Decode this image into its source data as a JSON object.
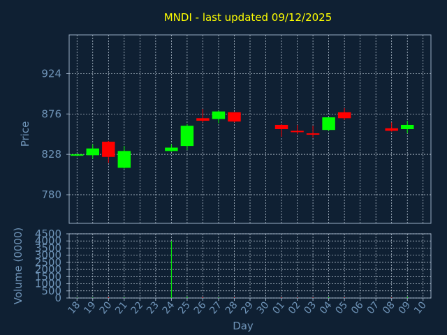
{
  "chart_data": {
    "type": "candlestick",
    "title": "MNDI - last updated 09/12/2025",
    "xlabel": "Day",
    "price": {
      "ylabel": "Price",
      "yticks": [
        780,
        828,
        876,
        924
      ],
      "ylim": [
        746,
        970
      ],
      "grid": true
    },
    "volume": {
      "ylabel": "Volume (0000)",
      "yticks": [
        0,
        500,
        1000,
        1500,
        2000,
        2500,
        3000,
        3500,
        4000,
        4500
      ],
      "ylim": [
        0,
        4500
      ],
      "grid": true
    },
    "colors": {
      "up": "#00ff00",
      "down": "#ff0000",
      "background": "#0f2033",
      "title": "#ffff00",
      "axis_text": "#6f94b8"
    },
    "days": [
      "18",
      "19",
      "20",
      "21",
      "22",
      "23",
      "24",
      "25",
      "26",
      "27",
      "28",
      "29",
      "30",
      "01",
      "02",
      "03",
      "04",
      "05",
      "06",
      "07",
      "08",
      "09",
      "10"
    ],
    "candles": [
      {
        "day": "18",
        "open": 828,
        "high": 829,
        "low": 827,
        "close": 828,
        "volume": 0
      },
      {
        "day": "19",
        "open": 827,
        "high": 840,
        "low": 823,
        "close": 835,
        "volume": 30
      },
      {
        "day": "20",
        "open": 843,
        "high": 844,
        "low": 818,
        "close": 825,
        "volume": 60
      },
      {
        "day": "21",
        "open": 812,
        "high": 838,
        "low": 811,
        "close": 832,
        "volume": 45
      },
      {
        "day": "24",
        "open": 832,
        "high": 840,
        "low": 831,
        "close": 836,
        "volume": 4000
      },
      {
        "day": "25",
        "open": 838,
        "high": 864,
        "low": 833,
        "close": 862,
        "volume": 100
      },
      {
        "day": "26",
        "open": 871,
        "high": 882,
        "low": 866,
        "close": 868,
        "volume": 80
      },
      {
        "day": "27",
        "open": 870,
        "high": 880,
        "low": 865,
        "close": 879,
        "volume": 40
      },
      {
        "day": "28",
        "open": 878,
        "high": 878,
        "low": 866,
        "close": 867,
        "volume": 40
      },
      {
        "day": "01",
        "open": 863,
        "high": 864,
        "low": 849,
        "close": 858,
        "volume": 50
      },
      {
        "day": "02",
        "open": 856,
        "high": 863,
        "low": 852,
        "close": 855,
        "volume": 30
      },
      {
        "day": "03",
        "open": 853,
        "high": 862,
        "low": 848,
        "close": 852,
        "volume": 40
      },
      {
        "day": "04",
        "open": 857,
        "high": 872,
        "low": 856,
        "close": 872,
        "volume": 60
      },
      {
        "day": "05",
        "open": 878,
        "high": 883,
        "low": 869,
        "close": 871,
        "volume": 40
      },
      {
        "day": "08",
        "open": 859,
        "high": 866,
        "low": 855,
        "close": 856,
        "volume": 30
      },
      {
        "day": "09",
        "open": 858,
        "high": 868,
        "low": 853,
        "close": 863,
        "volume": 80
      }
    ]
  }
}
